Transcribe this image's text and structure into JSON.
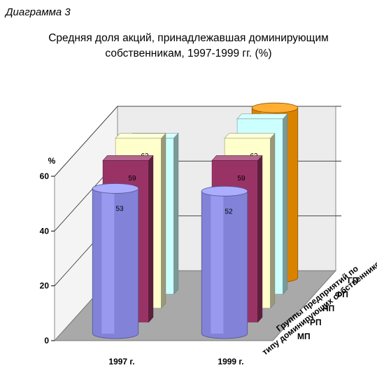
{
  "diagram_label": "Диаграмма 3",
  "chart_data": {
    "type": "bar",
    "title": "Средняя доля акций, принадлежавшая доминирующим",
    "subtitle": "собственникам, 1997-1999 гг. (%)",
    "ylabel": "%",
    "zlabel": "Группы предприятий по типу доминирующих собственников",
    "ylim": [
      0,
      60
    ],
    "yticks": [
      "0",
      "20",
      "40",
      "60"
    ],
    "categories": [
      "1997 г.",
      "1999 г."
    ],
    "series": [
      {
        "name": "МП",
        "values": [
          53,
          52
        ],
        "color": "#9999ff"
      },
      {
        "name": "РП",
        "values": [
          59,
          59
        ],
        "color": "#993366"
      },
      {
        "name": "НП",
        "values": [
          62,
          62
        ],
        "color": "#ffffcc"
      },
      {
        "name": "ФП",
        "values": [
          57,
          64
        ],
        "color": "#ccffff"
      },
      {
        "name": "ГП",
        "values": [
          null,
          62
        ],
        "color": "#ff9900"
      }
    ]
  }
}
